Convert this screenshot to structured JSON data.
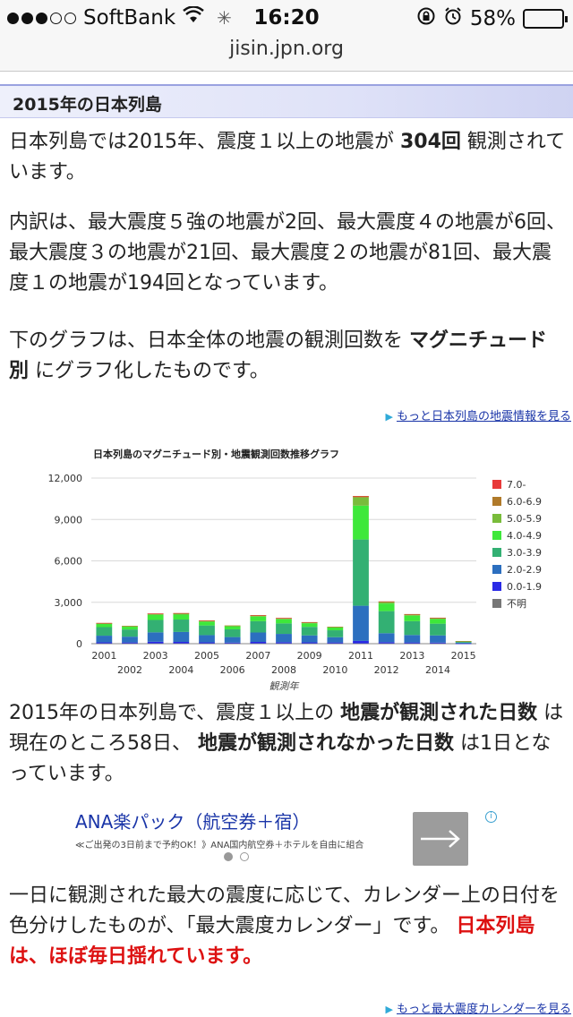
{
  "status_bar": {
    "carrier": "SoftBank",
    "time": "16:20",
    "battery": "58%",
    "battery_level": 0.58,
    "signal_bars": 3,
    "signal_total": 5
  },
  "browser": {
    "url": "jisin.jpn.org"
  },
  "section": {
    "title": "2015年の日本列島"
  },
  "paragraphs": {
    "p1_a": "日本列島では2015年、震度１以上の地震が ",
    "p1_b": "304回",
    "p1_c": " 観測されています。",
    "p2": "内訳は、最大震度５強の地震が2回、最大震度４の地震が6回、最大震度３の地震が21回、最大震度２の地震が81回、最大震度１の地震が194回となっています。",
    "p3_a": "下のグラフは、日本全体の地震の観測回数を ",
    "p3_b": "マグニチュード別",
    "p3_c": " にグラフ化したものです。",
    "p4_a": "2015年の日本列島で、震度１以上の ",
    "p4_b": "地震が観測された日数",
    "p4_c": " は現在のところ58日、 ",
    "p4_d": "地震が観測されなかった日数",
    "p4_e": " は1日となっています。",
    "p5_a": "一日に観測された最大の震度に応じて、カレンダー上の日付を色分けしたものが、「最大震度カレンダー」です。 ",
    "p5_b": "日本列島は、ほぼ毎日揺れています。"
  },
  "links": {
    "more_info": "もっと日本列島の地震情報を見る",
    "more_calendar": "もっと最大震度カレンダーを見る"
  },
  "ad": {
    "title": "ANA楽パック（航空券＋宿）",
    "subtitle": "≪ご出発の3日前まで予約OK！》ANA国内航空券＋ホテルを自由に組合",
    "button_icon": "arrow-right-icon",
    "info_icon": "info-icon"
  },
  "chart_data": {
    "type": "bar",
    "stacked": true,
    "title": "日本列島のマグニチュード別・地震観測回数推移グラフ",
    "xlabel": "観測年",
    "ylabel": "",
    "ylim": [
      0,
      12000
    ],
    "yticks": [
      "0",
      "3,000",
      "6,000",
      "9,000",
      "12,000"
    ],
    "grid": true,
    "legend_position": "right",
    "categories": [
      "2001",
      "2002",
      "2003",
      "2004",
      "2005",
      "2006",
      "2007",
      "2008",
      "2009",
      "2010",
      "2011",
      "2012",
      "2013",
      "2014",
      "2015"
    ],
    "series": [
      {
        "name": "不明",
        "color": "#777777",
        "values": [
          20,
          20,
          20,
          20,
          20,
          20,
          20,
          20,
          20,
          20,
          20,
          20,
          20,
          20,
          5
        ]
      },
      {
        "name": "0.0-1.9",
        "color": "#2a2ae6",
        "values": [
          80,
          70,
          120,
          110,
          80,
          60,
          110,
          90,
          80,
          70,
          180,
          90,
          70,
          60,
          10
        ]
      },
      {
        "name": "2.0-2.9",
        "color": "#2c6fbf",
        "values": [
          480,
          420,
          680,
          720,
          520,
          400,
          680,
          600,
          500,
          380,
          2550,
          650,
          540,
          520,
          60
        ]
      },
      {
        "name": "3.0-3.9",
        "color": "#33b073",
        "values": [
          620,
          520,
          900,
          900,
          700,
          560,
          820,
          760,
          620,
          500,
          4800,
          1600,
          1000,
          850,
          80
        ]
      },
      {
        "name": "4.0-4.9",
        "color": "#3ee83a",
        "values": [
          230,
          200,
          360,
          360,
          280,
          220,
          330,
          300,
          260,
          200,
          2450,
          550,
          400,
          340,
          25
        ]
      },
      {
        "name": "5.0-5.9",
        "color": "#79bc3b",
        "values": [
          60,
          50,
          90,
          90,
          70,
          50,
          90,
          80,
          70,
          50,
          600,
          130,
          100,
          80,
          4
        ]
      },
      {
        "name": "6.0-6.9",
        "color": "#b07a2a",
        "values": [
          10,
          8,
          14,
          14,
          10,
          8,
          14,
          12,
          10,
          8,
          90,
          18,
          14,
          12,
          1
        ]
      },
      {
        "name": "7.0-",
        "color": "#e83a3a",
        "values": [
          1,
          0,
          2,
          2,
          1,
          0,
          2,
          1,
          1,
          0,
          9,
          2,
          1,
          1,
          0
        ]
      }
    ]
  }
}
